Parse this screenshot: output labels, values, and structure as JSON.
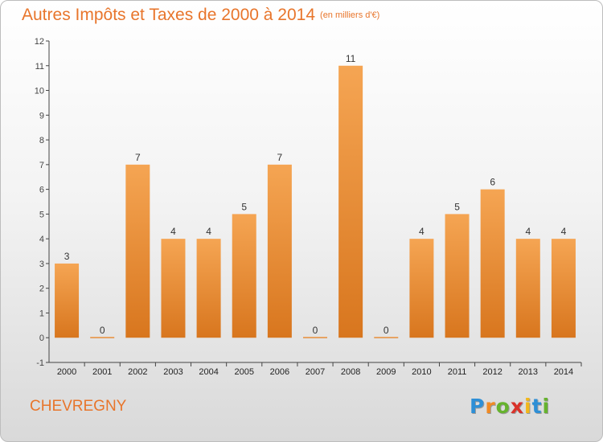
{
  "header": {
    "title": "Autres Impôts et Taxes de 2000 à 2014",
    "unit": "(en milliers d'€)"
  },
  "footer": {
    "town": "CHEVREGNY",
    "logo_text": "Proxiti"
  },
  "colors": {
    "bar_top": "#f5a553",
    "bar_bottom": "#d8761e",
    "text": "#e8752b",
    "axis": "#444444"
  },
  "chart_data": {
    "type": "bar",
    "title": "Autres Impôts et Taxes de 2000 à 2014",
    "categories": [
      "2000",
      "2001",
      "2002",
      "2003",
      "2004",
      "2005",
      "2006",
      "2007",
      "2008",
      "2009",
      "2010",
      "2011",
      "2012",
      "2013",
      "2014"
    ],
    "values": [
      3,
      0,
      7,
      4,
      4,
      5,
      7,
      0,
      11,
      0,
      4,
      5,
      6,
      4,
      4
    ],
    "ylim": [
      -1,
      12
    ],
    "yticks": [
      -1,
      0,
      1,
      2,
      3,
      4,
      5,
      6,
      7,
      8,
      9,
      10,
      11,
      12
    ],
    "grid": false,
    "data_labels": true
  }
}
